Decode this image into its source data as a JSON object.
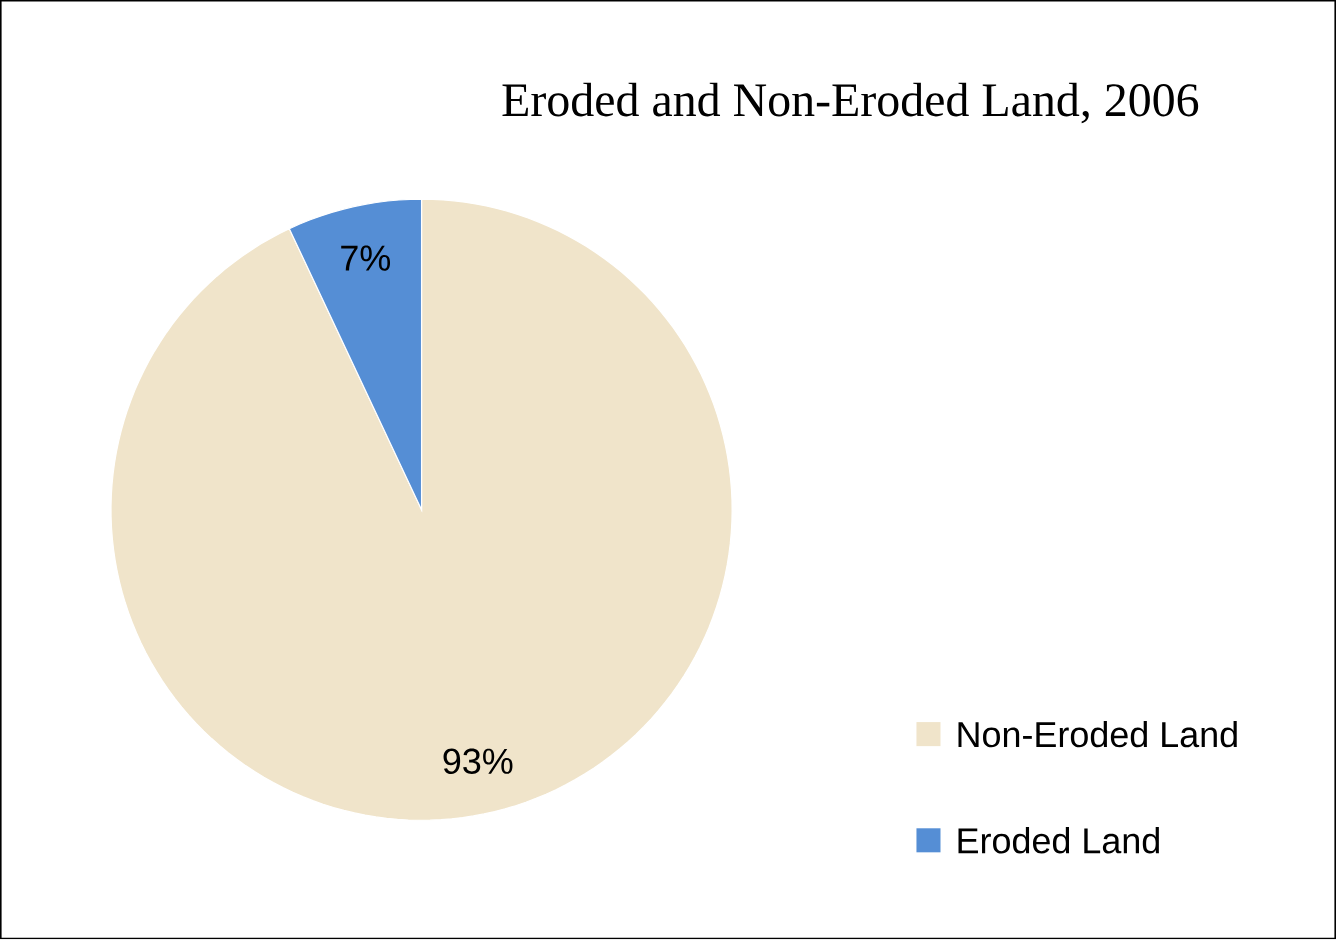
{
  "chart_data": {
    "type": "pie",
    "title": "Eroded and Non-Eroded Land, 2006",
    "categories": [
      "Non-Eroded Land",
      "Eroded Land"
    ],
    "values": [
      93,
      7
    ],
    "colors": [
      "#f0e4ca",
      "#558ed5"
    ],
    "value_labels": [
      "93%",
      "7%"
    ],
    "legend": "right"
  }
}
